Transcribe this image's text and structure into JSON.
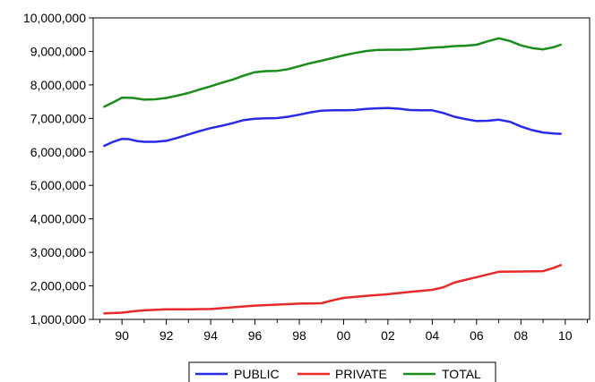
{
  "chart_data": {
    "type": "line",
    "x_tick_labels": [
      "90",
      "92",
      "94",
      "96",
      "98",
      "00",
      "02",
      "04",
      "06",
      "08",
      "10"
    ],
    "y_tick_labels": [
      "1,000,000",
      "2,000,000",
      "3,000,000",
      "4,000,000",
      "5,000,000",
      "6,000,000",
      "7,000,000",
      "8,000,000",
      "9,000,000",
      "10,000,000"
    ],
    "xlim": [
      1988.7,
      2011.1
    ],
    "ylim": [
      1000000,
      10000000
    ],
    "grid": false,
    "legend_position": "bottom",
    "series": [
      {
        "name": "PUBLIC",
        "color": "#2a2ae6",
        "x": [
          1989.2,
          1989.6,
          1990.0,
          1990.3,
          1990.7,
          1991.0,
          1991.5,
          1992.0,
          1992.5,
          1993.0,
          1993.5,
          1994.0,
          1994.5,
          1995.0,
          1995.5,
          1996.0,
          1996.5,
          1997.0,
          1997.5,
          1998.0,
          1998.5,
          1999.0,
          1999.5,
          2000.0,
          2000.5,
          2001.0,
          2001.5,
          2002.0,
          2002.5,
          2003.0,
          2003.5,
          2004.0,
          2004.5,
          2005.0,
          2005.5,
          2006.0,
          2006.5,
          2007.0,
          2007.5,
          2008.0,
          2008.5,
          2009.0,
          2009.5,
          2009.8
        ],
        "y": [
          6180000,
          6300000,
          6390000,
          6380000,
          6320000,
          6300000,
          6300000,
          6330000,
          6420000,
          6520000,
          6620000,
          6710000,
          6780000,
          6860000,
          6950000,
          6990000,
          7000000,
          7010000,
          7050000,
          7110000,
          7180000,
          7230000,
          7240000,
          7240000,
          7250000,
          7280000,
          7300000,
          7310000,
          7290000,
          7250000,
          7240000,
          7240000,
          7160000,
          7050000,
          6980000,
          6920000,
          6930000,
          6960000,
          6900000,
          6760000,
          6650000,
          6580000,
          6550000,
          6540000
        ]
      },
      {
        "name": "PRIVATE",
        "color": "#e62a2a",
        "x": [
          1989.2,
          1990.0,
          1990.5,
          1991.0,
          1992.0,
          1993.0,
          1994.0,
          1995.0,
          1996.0,
          1997.0,
          1998.0,
          1999.0,
          1999.5,
          2000.0,
          2001.0,
          2002.0,
          2003.0,
          2004.0,
          2004.5,
          2005.0,
          2006.0,
          2007.0,
          2008.0,
          2009.0,
          2009.5,
          2009.8
        ],
        "y": [
          1180000,
          1200000,
          1240000,
          1270000,
          1300000,
          1300000,
          1310000,
          1360000,
          1410000,
          1440000,
          1470000,
          1480000,
          1570000,
          1640000,
          1700000,
          1750000,
          1820000,
          1880000,
          1960000,
          2100000,
          2260000,
          2420000,
          2430000,
          2440000,
          2540000,
          2620000
        ]
      },
      {
        "name": "TOTAL",
        "color": "#1a8c1a",
        "x": [
          1989.2,
          1989.6,
          1990.0,
          1990.5,
          1991.0,
          1991.5,
          1992.0,
          1992.5,
          1993.0,
          1993.5,
          1994.0,
          1994.5,
          1995.0,
          1995.5,
          1996.0,
          1996.5,
          1997.0,
          1997.5,
          1998.0,
          1998.5,
          1999.0,
          1999.5,
          2000.0,
          2000.5,
          2001.0,
          2001.5,
          2002.0,
          2002.5,
          2003.0,
          2003.5,
          2004.0,
          2004.5,
          2005.0,
          2005.5,
          2006.0,
          2006.5,
          2007.0,
          2007.5,
          2008.0,
          2008.5,
          2009.0,
          2009.5,
          2009.8
        ],
        "y": [
          7350000,
          7480000,
          7620000,
          7610000,
          7560000,
          7570000,
          7610000,
          7680000,
          7760000,
          7860000,
          7960000,
          8060000,
          8160000,
          8280000,
          8380000,
          8410000,
          8420000,
          8470000,
          8560000,
          8650000,
          8720000,
          8800000,
          8880000,
          8950000,
          9010000,
          9040000,
          9050000,
          9050000,
          9060000,
          9080000,
          9110000,
          9130000,
          9160000,
          9170000,
          9200000,
          9300000,
          9390000,
          9310000,
          9180000,
          9100000,
          9060000,
          9130000,
          9200000
        ]
      }
    ]
  }
}
